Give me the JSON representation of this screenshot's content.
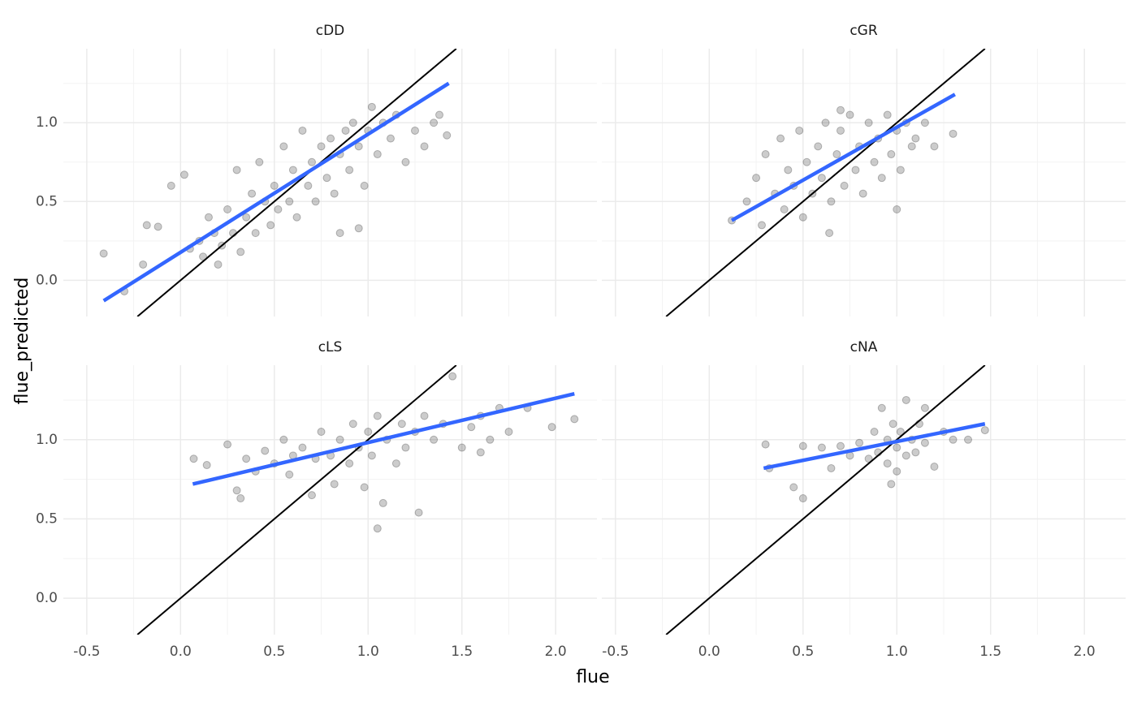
{
  "xlabel": "flue",
  "ylabel": "flue_predicted",
  "chart_data": [
    {
      "type": "scatter",
      "title": "cDD",
      "color": "#000000",
      "xlim": [
        -0.625,
        2.22
      ],
      "ylim": [
        -0.23,
        1.47
      ],
      "xticks": [
        -0.5,
        {
          "value": 0,
          "label": "0.0"
        },
        0.5,
        {
          "value": 1,
          "label": "1.0"
        },
        1.5,
        {
          "value": 2,
          "label": "2.0"
        }
      ],
      "yticks": [
        {
          "value": 0,
          "label": "0.0"
        },
        0.5,
        {
          "value": 1,
          "label": "1.0"
        }
      ],
      "xminor": [
        -0.25,
        0.25,
        0.75,
        1.25,
        1.75
      ],
      "yminor": [
        0.25,
        0.75,
        1.25
      ],
      "grid": true,
      "x": [
        -0.41,
        -0.3,
        -0.18,
        -0.2,
        -0.12,
        -0.05,
        0.02,
        0.05,
        0.1,
        0.12,
        0.15,
        0.18,
        0.2,
        0.22,
        0.25,
        0.28,
        0.3,
        0.32,
        0.35,
        0.38,
        0.4,
        0.42,
        0.45,
        0.48,
        0.5,
        0.52,
        0.55,
        0.58,
        0.6,
        0.62,
        0.65,
        0.68,
        0.7,
        0.72,
        0.75,
        0.78,
        0.8,
        0.82,
        0.85,
        0.88,
        0.9,
        0.92,
        0.95,
        0.98,
        1.0,
        1.02,
        1.05,
        1.08,
        1.12,
        1.15,
        1.2,
        1.25,
        1.3,
        1.35,
        1.42,
        1.38,
        0.95,
        0.85
      ],
      "y": [
        0.17,
        -0.07,
        0.35,
        0.1,
        0.34,
        0.6,
        0.67,
        0.2,
        0.25,
        0.15,
        0.4,
        0.3,
        0.1,
        0.22,
        0.45,
        0.3,
        0.7,
        0.18,
        0.4,
        0.55,
        0.3,
        0.75,
        0.5,
        0.35,
        0.6,
        0.45,
        0.85,
        0.5,
        0.7,
        0.4,
        0.95,
        0.6,
        0.75,
        0.5,
        0.85,
        0.65,
        0.9,
        0.55,
        0.8,
        0.95,
        0.7,
        1.0,
        0.85,
        0.6,
        0.95,
        1.1,
        0.8,
        1.0,
        0.9,
        1.05,
        0.75,
        0.95,
        0.85,
        1.0,
        0.92,
        1.05,
        0.33,
        0.3
      ],
      "fit": {
        "x": [
          -0.41,
          1.43
        ],
        "y": [
          -0.13,
          1.25
        ],
        "color": "#3366ff"
      },
      "identity_line": {
        "x": [
          -0.23,
          1.47
        ],
        "y": [
          -0.23,
          1.47
        ],
        "color": "#000000"
      }
    },
    {
      "type": "scatter",
      "title": "cGR",
      "color": "#000000",
      "xlim": [
        -0.625,
        2.22
      ],
      "ylim": [
        -0.23,
        1.47
      ],
      "xticks": [
        -0.5,
        {
          "value": 0,
          "label": "0.0"
        },
        0.5,
        {
          "value": 1,
          "label": "1.0"
        },
        1.5,
        {
          "value": 2,
          "label": "2.0"
        }
      ],
      "yticks": [
        {
          "value": 0,
          "label": "0.0"
        },
        0.5,
        {
          "value": 1,
          "label": "1.0"
        }
      ],
      "xminor": [
        -0.25,
        0.25,
        0.75,
        1.25,
        1.75
      ],
      "yminor": [
        0.25,
        0.75,
        1.25
      ],
      "grid": true,
      "x": [
        0.12,
        0.2,
        0.25,
        0.28,
        0.3,
        0.35,
        0.38,
        0.4,
        0.42,
        0.45,
        0.48,
        0.5,
        0.52,
        0.55,
        0.58,
        0.6,
        0.62,
        0.64,
        0.65,
        0.68,
        0.7,
        0.72,
        0.75,
        0.78,
        0.8,
        0.82,
        0.85,
        0.88,
        0.9,
        0.92,
        0.95,
        0.97,
        1.0,
        1.0,
        1.02,
        1.05,
        1.08,
        1.1,
        1.15,
        1.2,
        1.3,
        0.7
      ],
      "y": [
        0.38,
        0.5,
        0.65,
        0.35,
        0.8,
        0.55,
        0.9,
        0.45,
        0.7,
        0.6,
        0.95,
        0.4,
        0.75,
        0.55,
        0.85,
        0.65,
        1.0,
        0.3,
        0.5,
        0.8,
        0.95,
        0.6,
        1.05,
        0.7,
        0.85,
        0.55,
        1.0,
        0.75,
        0.9,
        0.65,
        1.05,
        0.8,
        0.95,
        0.45,
        0.7,
        1.0,
        0.85,
        0.9,
        1.0,
        0.85,
        0.93,
        1.08
      ],
      "fit": {
        "x": [
          0.12,
          1.31
        ],
        "y": [
          0.38,
          1.18
        ],
        "color": "#3366ff"
      },
      "identity_line": {
        "x": [
          -0.23,
          1.47
        ],
        "y": [
          -0.23,
          1.47
        ],
        "color": "#000000"
      }
    },
    {
      "type": "scatter",
      "title": "cLS",
      "color": "#000000",
      "xlim": [
        -0.625,
        2.22
      ],
      "ylim": [
        -0.23,
        1.47
      ],
      "xticks": [
        -0.5,
        {
          "value": 0,
          "label": "0.0"
        },
        0.5,
        {
          "value": 1,
          "label": "1.0"
        },
        1.5,
        {
          "value": 2,
          "label": "2.0"
        }
      ],
      "yticks": [
        {
          "value": 0,
          "label": "0.0"
        },
        0.5,
        {
          "value": 1,
          "label": "1.0"
        }
      ],
      "xminor": [
        -0.25,
        0.25,
        0.75,
        1.25,
        1.75
      ],
      "yminor": [
        0.25,
        0.75,
        1.25
      ],
      "grid": true,
      "x": [
        0.07,
        0.14,
        0.25,
        0.3,
        0.32,
        0.35,
        0.4,
        0.45,
        0.5,
        0.55,
        0.58,
        0.6,
        0.65,
        0.7,
        0.72,
        0.75,
        0.8,
        0.82,
        0.85,
        0.9,
        0.92,
        0.95,
        0.98,
        1.0,
        1.02,
        1.05,
        1.05,
        1.08,
        1.1,
        1.15,
        1.18,
        1.2,
        1.25,
        1.27,
        1.3,
        1.35,
        1.4,
        1.45,
        1.5,
        1.55,
        1.6,
        1.65,
        1.7,
        1.75,
        1.85,
        1.98,
        2.1,
        1.6
      ],
      "y": [
        0.88,
        0.84,
        0.97,
        0.68,
        0.63,
        0.88,
        0.8,
        0.93,
        0.85,
        1.0,
        0.78,
        0.9,
        0.95,
        0.65,
        0.88,
        1.05,
        0.9,
        0.72,
        1.0,
        0.85,
        1.1,
        0.95,
        0.7,
        1.05,
        0.9,
        0.44,
        1.15,
        0.6,
        1.0,
        0.85,
        1.1,
        0.95,
        1.05,
        0.54,
        1.15,
        1.0,
        1.1,
        1.4,
        0.95,
        1.08,
        1.15,
        1.0,
        1.2,
        1.05,
        1.2,
        1.08,
        1.13,
        0.92
      ],
      "fit": {
        "x": [
          0.065,
          2.1
        ],
        "y": [
          0.72,
          1.29
        ],
        "color": "#3366ff"
      },
      "identity_line": {
        "x": [
          -0.23,
          1.47
        ],
        "y": [
          -0.23,
          1.47
        ],
        "color": "#000000"
      }
    },
    {
      "type": "scatter",
      "title": "cNA",
      "color": "#000000",
      "xlim": [
        -0.625,
        2.22
      ],
      "ylim": [
        -0.23,
        1.47
      ],
      "xticks": [
        -0.5,
        {
          "value": 0,
          "label": "0.0"
        },
        0.5,
        {
          "value": 1,
          "label": "1.0"
        },
        1.5,
        {
          "value": 2,
          "label": "2.0"
        }
      ],
      "yticks": [
        {
          "value": 0,
          "label": "0.0"
        },
        0.5,
        {
          "value": 1,
          "label": "1.0"
        }
      ],
      "xminor": [
        -0.25,
        0.25,
        0.75,
        1.25,
        1.75
      ],
      "yminor": [
        0.25,
        0.75,
        1.25
      ],
      "grid": true,
      "x": [
        0.3,
        0.32,
        0.45,
        0.5,
        0.5,
        0.6,
        0.65,
        0.7,
        0.75,
        0.8,
        0.85,
        0.88,
        0.9,
        0.92,
        0.95,
        0.95,
        0.97,
        0.98,
        1.0,
        1.0,
        1.02,
        1.05,
        1.05,
        1.08,
        1.1,
        1.12,
        1.15,
        1.2,
        1.25,
        1.3,
        1.38,
        1.47,
        1.15
      ],
      "y": [
        0.97,
        0.82,
        0.7,
        0.63,
        0.96,
        0.95,
        0.82,
        0.96,
        0.9,
        0.98,
        0.88,
        1.05,
        0.92,
        1.2,
        0.85,
        1.0,
        0.72,
        1.1,
        0.95,
        0.8,
        1.05,
        1.25,
        0.9,
        1.0,
        0.92,
        1.1,
        0.98,
        0.83,
        1.05,
        1.0,
        1.0,
        1.06,
        1.2
      ],
      "fit": {
        "x": [
          0.29,
          1.47
        ],
        "y": [
          0.82,
          1.1
        ],
        "color": "#3366ff"
      },
      "identity_line": {
        "x": [
          -0.23,
          1.47
        ],
        "y": [
          -0.23,
          1.47
        ],
        "color": "#000000"
      }
    }
  ]
}
